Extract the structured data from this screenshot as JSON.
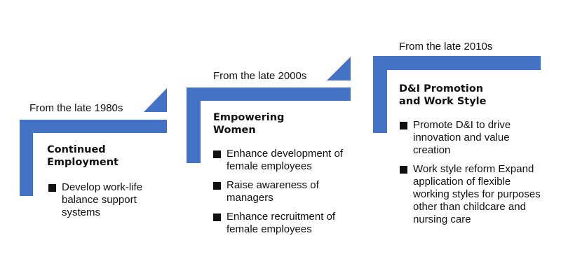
{
  "colors": {
    "accent": "#4472C4"
  },
  "steps": [
    {
      "era": "From the late 1980s",
      "title_lines": [
        "Continued",
        "Employment"
      ],
      "items": [
        "Develop work-life balance support systems"
      ]
    },
    {
      "era": "From the late 2000s",
      "title_lines": [
        "Empowering",
        "Women"
      ],
      "items": [
        "Enhance development of female employees",
        "Raise awareness of managers",
        "Enhance recruitment of female employees"
      ]
    },
    {
      "era": "From the late 2010s",
      "title_lines": [
        "D&I Promotion",
        "and Work Style"
      ],
      "items": [
        "Promote D&I to drive innovation and value creation",
        "Work style reform Expand application of flexible working styles for purposes other than childcare and nursing care"
      ]
    }
  ]
}
